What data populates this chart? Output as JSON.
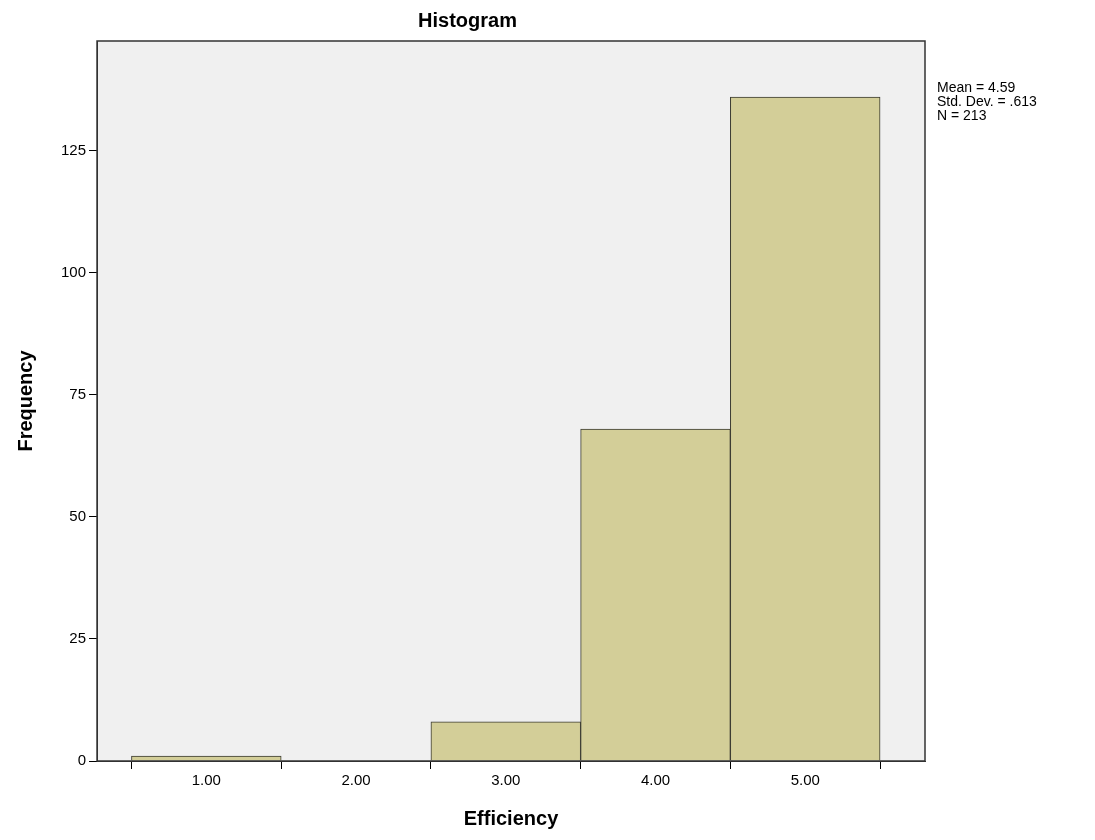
{
  "chart_data": {
    "type": "histogram",
    "title": "Histogram",
    "xlabel": "Efficiency",
    "ylabel": "Frequency",
    "bins": [
      0.5,
      1.5,
      2.5,
      3.5,
      4.5,
      5.5
    ],
    "values": [
      1,
      0,
      8,
      68,
      136
    ],
    "color": "#d3ce98",
    "xlim": [
      0.27,
      5.8
    ],
    "xticks": [
      {
        "value": 1,
        "label": "1.00"
      },
      {
        "value": 2,
        "label": "2.00"
      },
      {
        "value": 3,
        "label": "3.00"
      },
      {
        "value": 4,
        "label": "4.00"
      },
      {
        "value": 5,
        "label": "5.00"
      }
    ],
    "ylim": [
      0,
      147.5
    ],
    "yticks": [
      0,
      25,
      50,
      75,
      100,
      125
    ],
    "grid": false,
    "legend": false,
    "annotations": [
      "Mean = 4.59",
      "Std. Dev. = .613",
      "N = 213"
    ]
  }
}
